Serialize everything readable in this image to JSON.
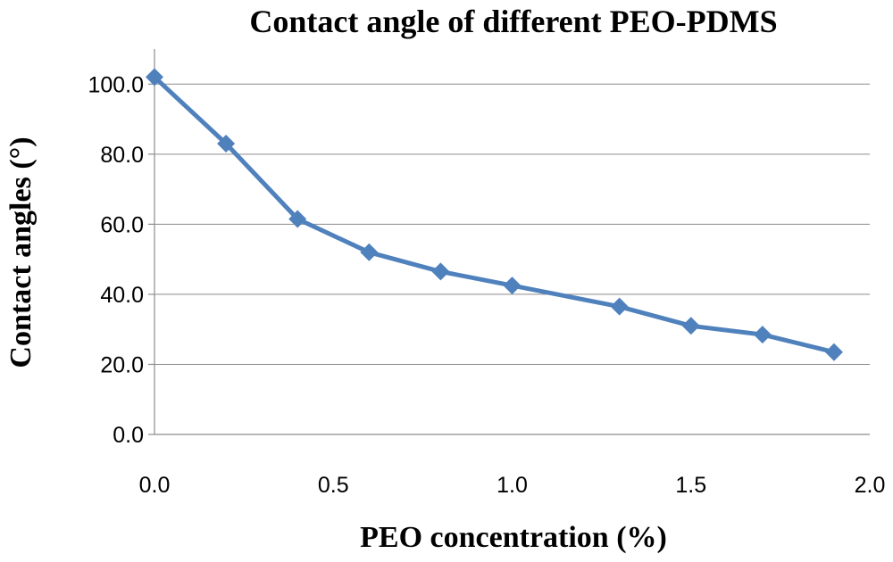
{
  "chart_data": {
    "type": "line",
    "title": "Contact angle of different PEO-PDMS",
    "xlabel": "PEO concentration (%)",
    "ylabel": "Contact angles (°)",
    "xlim": [
      0,
      2
    ],
    "ylim": [
      0,
      110
    ],
    "x_ticks": [
      0,
      0.5,
      1.0,
      1.5,
      2.0
    ],
    "x_tick_labels": [
      "0.0",
      "0.5",
      "1.0",
      "1.5",
      "2.0"
    ],
    "y_ticks": [
      0,
      20,
      40,
      60,
      80,
      100
    ],
    "y_tick_labels": [
      "0.0",
      "20.0",
      "40.0",
      "60.0",
      "80.0",
      "100.0"
    ],
    "grid": true,
    "series": [
      {
        "name": "PEO-PDMS",
        "color": "#4F81BD",
        "marker": "diamond",
        "x": [
          0.0,
          0.2,
          0.4,
          0.6,
          0.8,
          1.0,
          1.3,
          1.5,
          1.7,
          1.9
        ],
        "y": [
          102,
          83,
          61.5,
          52,
          46.5,
          42.5,
          36.5,
          31,
          28.5,
          23.5
        ]
      }
    ]
  }
}
